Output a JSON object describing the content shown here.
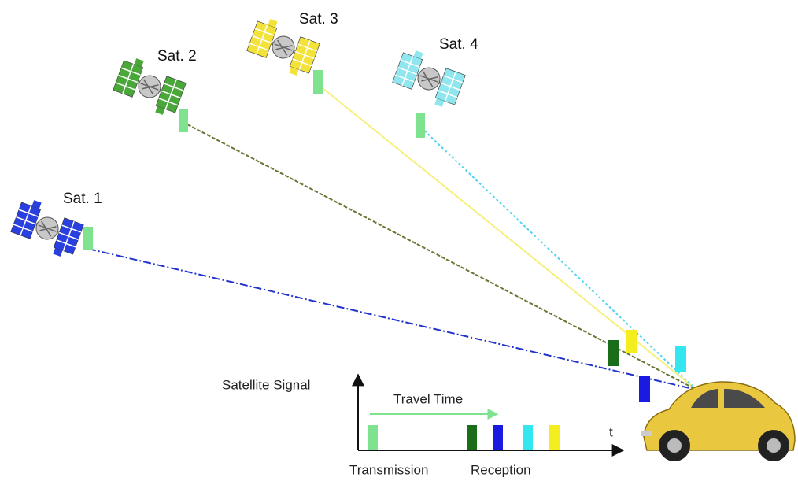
{
  "satellites": [
    {
      "label": "Sat. 1"
    },
    {
      "label": "Sat. 2"
    },
    {
      "label": "Sat. 3"
    },
    {
      "label": "Sat. 4"
    }
  ],
  "timeline": {
    "axis_label": "Satellite Signal",
    "travel_label": "Travel Time",
    "time_label": "t",
    "transmission_label": "Transmission",
    "reception_label": "Reception"
  }
}
